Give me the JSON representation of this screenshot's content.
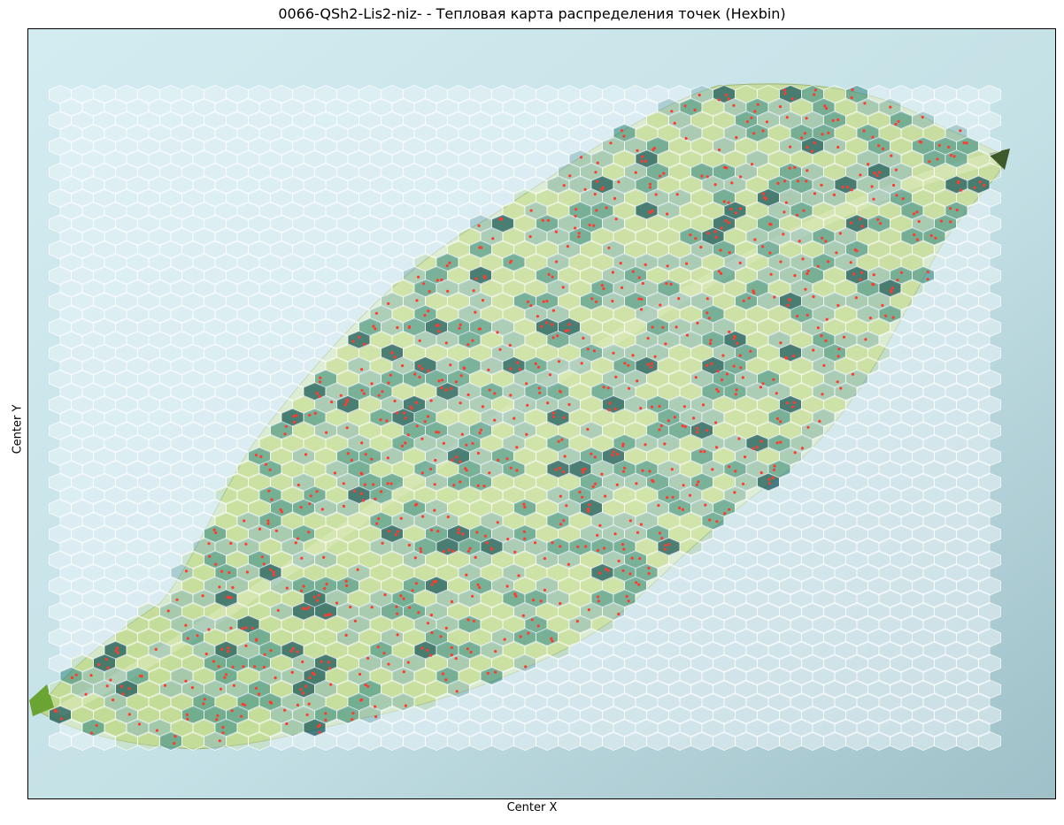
{
  "chart_data": {
    "type": "heatmap",
    "subtype": "hexbin",
    "title": "0066-QSh2-Lis2-niz- - Тепловая карта распределения точек (Hexbin)",
    "xlabel": "Center X",
    "ylabel": "Center Y",
    "ticks": "none",
    "grid": false,
    "background_image": "leaf photograph",
    "colors": {
      "empty_hex": "#e9f4f8",
      "low": "#8fbcc0",
      "mid": "#3f8f8c",
      "high": "#12535b",
      "hex_edge": "#ffffff",
      "point": "#ff3b30",
      "leaf_light": "#cfe3a6",
      "leaf_dark": "#a8c97a",
      "backdrop": "#c6e2e8"
    },
    "points_marker": "red dot",
    "hexbin_grid": {
      "columns": 43,
      "rows": 51
    }
  }
}
